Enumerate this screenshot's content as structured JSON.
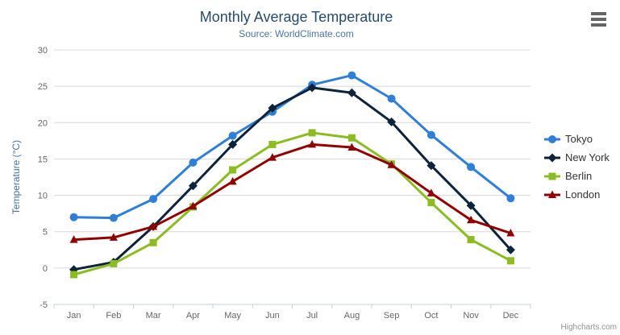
{
  "chart": {
    "title": "Monthly Average Temperature",
    "subtitle": "Source: WorldClimate.com",
    "credit": "Highcharts.com",
    "menu_icon": "hamburger-icon"
  },
  "chart_data": {
    "type": "line",
    "title": "Monthly Average Temperature",
    "subtitle": "Source: WorldClimate.com",
    "categories": [
      "Jan",
      "Feb",
      "Mar",
      "Apr",
      "May",
      "Jun",
      "Jul",
      "Aug",
      "Sep",
      "Oct",
      "Nov",
      "Dec"
    ],
    "xlabel": "",
    "ylabel": "Temperature (°C)",
    "ylim": [
      -5,
      30
    ],
    "ytick_step": 5,
    "grid": true,
    "legend_position": "right",
    "series": [
      {
        "name": "Tokyo",
        "marker": "circle",
        "color": "#2f7ed8",
        "values": [
          7.0,
          6.9,
          9.5,
          14.5,
          18.2,
          21.5,
          25.2,
          26.5,
          23.3,
          18.3,
          13.9,
          9.6
        ]
      },
      {
        "name": "New York",
        "marker": "diamond",
        "color": "#0d233a",
        "values": [
          -0.2,
          0.8,
          5.7,
          11.3,
          17.0,
          22.0,
          24.8,
          24.1,
          20.1,
          14.1,
          8.6,
          2.5
        ]
      },
      {
        "name": "Berlin",
        "marker": "square",
        "color": "#8bbc21",
        "values": [
          -0.9,
          0.6,
          3.5,
          8.4,
          13.5,
          17.0,
          18.6,
          17.9,
          14.3,
          9.0,
          3.9,
          1.0
        ]
      },
      {
        "name": "London",
        "marker": "triangle",
        "color": "#910000",
        "values": [
          3.9,
          4.2,
          5.7,
          8.5,
          11.9,
          15.2,
          17.0,
          16.6,
          14.2,
          10.3,
          6.6,
          4.8
        ]
      }
    ]
  },
  "colors": {
    "title": "#274b6d",
    "subtitle": "#4d759e",
    "axis_label": "#666666",
    "axis_title": "#4572a7",
    "grid": "#d8d8d8",
    "axis_line": "#c0d0e0",
    "legend_text": "#333333",
    "credit": "#909090",
    "menu": "#666666"
  }
}
